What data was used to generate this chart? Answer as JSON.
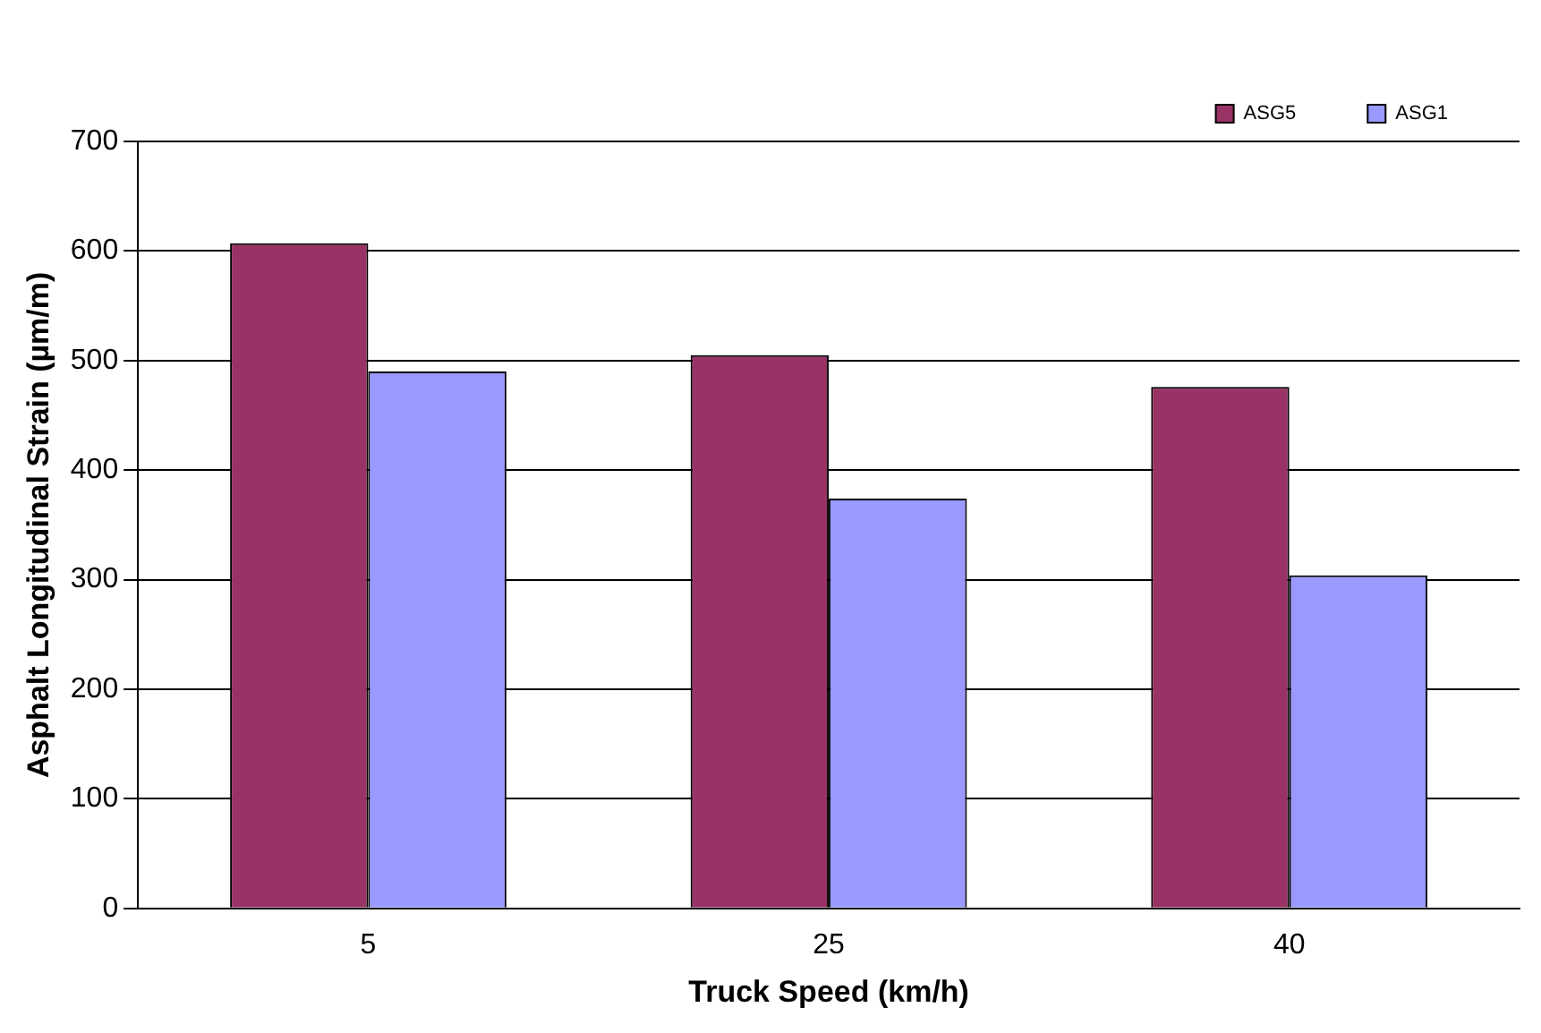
{
  "chart_data": {
    "type": "bar",
    "xlabel": "Truck Speed (km/h)",
    "ylabel": "Asphalt Longitudinal Strain (µm/m)",
    "categories": [
      "5",
      "25",
      "40"
    ],
    "series": [
      {
        "name": "ASG5",
        "color": "#993366",
        "values": [
          607,
          505,
          476
        ]
      },
      {
        "name": "ASG1",
        "color": "#9999ff",
        "values": [
          490,
          374,
          304
        ]
      }
    ],
    "ylim": [
      0,
      700
    ],
    "yticks": [
      0,
      100,
      200,
      300,
      400,
      500,
      600,
      700
    ],
    "grid": "y",
    "legend": "top right"
  }
}
